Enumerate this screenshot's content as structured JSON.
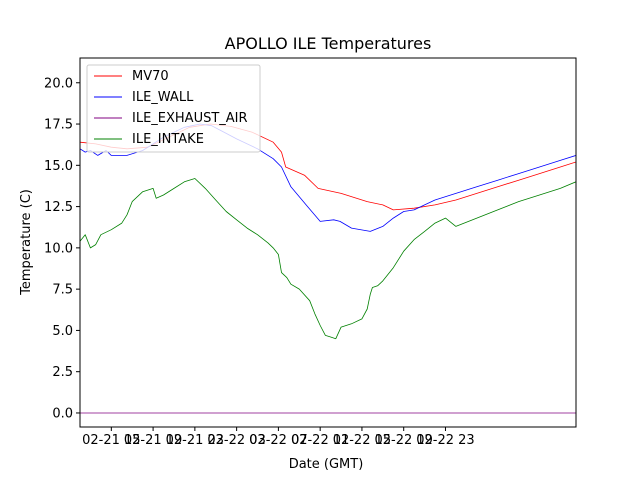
{
  "chart_data": {
    "type": "line",
    "title": "APOLLO ILE Temperatures",
    "xlabel": "Date (GMT)",
    "ylabel": "Temperature (C)",
    "xlim": [
      12,
      59.5
    ],
    "ylim": [
      -0.85,
      21.5
    ],
    "x_unit": "hours since 02-21 00:00 GMT",
    "x_ticks": [
      {
        "value": 15,
        "label": "02-21 15"
      },
      {
        "value": 19,
        "label": "02-21 19"
      },
      {
        "value": 23,
        "label": "02-21 23"
      },
      {
        "value": 27,
        "label": "02-22 03"
      },
      {
        "value": 31,
        "label": "02-22 07"
      },
      {
        "value": 35,
        "label": "02-22 11"
      },
      {
        "value": 39,
        "label": "02-22 15"
      },
      {
        "value": 43,
        "label": "02-22 19"
      },
      {
        "value": 47,
        "label": "02-22 23"
      }
    ],
    "y_ticks": [
      {
        "value": 0.0,
        "label": "0.0"
      },
      {
        "value": 2.5,
        "label": "2.5"
      },
      {
        "value": 5.0,
        "label": "5.0"
      },
      {
        "value": 7.5,
        "label": "7.5"
      },
      {
        "value": 10.0,
        "label": "10.0"
      },
      {
        "value": 12.5,
        "label": "12.5"
      },
      {
        "value": 15.0,
        "label": "15.0"
      },
      {
        "value": 17.5,
        "label": "17.5"
      },
      {
        "value": 20.0,
        "label": "20.0"
      }
    ],
    "legend_position": "top-left",
    "series": [
      {
        "name": "MV70",
        "color": "#ff0000",
        "x": [
          12,
          13.5,
          15,
          16.5,
          18.5,
          20.5,
          22.5,
          24.5,
          26.5,
          28.5,
          30.5,
          31.3,
          31.7,
          33.5,
          34.8,
          37,
          39.5,
          41,
          42,
          44,
          46,
          48,
          50,
          52,
          54,
          56,
          58,
          59.5
        ],
        "values": [
          16.4,
          16.3,
          16.1,
          16.0,
          16.1,
          16.7,
          17.3,
          17.5,
          17.35,
          17.0,
          16.4,
          15.8,
          14.9,
          14.4,
          13.6,
          13.3,
          12.8,
          12.6,
          12.3,
          12.4,
          12.6,
          12.9,
          13.3,
          13.7,
          14.1,
          14.5,
          14.9,
          15.2
        ]
      },
      {
        "name": "ILE_WALL",
        "color": "#0000ff",
        "x": [
          12,
          12.5,
          13,
          13.7,
          14.5,
          15,
          16.5,
          18,
          20,
          22,
          23.5,
          24.6,
          25.5,
          27,
          29,
          30.5,
          31.3,
          32.2,
          33.8,
          35,
          36.3,
          36.9,
          38,
          39.8,
          41,
          42,
          43,
          44,
          45,
          46,
          48,
          50,
          52,
          54,
          56,
          58,
          59.5
        ],
        "values": [
          16.0,
          15.8,
          15.9,
          15.6,
          15.9,
          15.6,
          15.6,
          15.9,
          16.7,
          17.3,
          17.5,
          17.4,
          17.1,
          16.6,
          16.0,
          15.4,
          14.9,
          13.7,
          12.5,
          11.6,
          11.7,
          11.6,
          11.2,
          11.0,
          11.3,
          11.8,
          12.2,
          12.3,
          12.6,
          12.9,
          13.3,
          13.7,
          14.1,
          14.5,
          14.9,
          15.3,
          15.6
        ]
      },
      {
        "name": "ILE_EXHAUST_AIR",
        "color": "#800080",
        "x": [
          12,
          59.5
        ],
        "values": [
          0.0,
          0.0
        ]
      },
      {
        "name": "ILE_INTAKE",
        "color": "#008000",
        "x": [
          12,
          12.5,
          13,
          13.5,
          14,
          15,
          16,
          16.5,
          17,
          18,
          19,
          19.3,
          20,
          21,
          22,
          23,
          24,
          25,
          26,
          27,
          28,
          29,
          30,
          30.5,
          31,
          31.3,
          31.8,
          32.2,
          33,
          34,
          34.5,
          35,
          35.5,
          36,
          36.5,
          37,
          38,
          39,
          39.5,
          39.8,
          40,
          40.5,
          41,
          42,
          43,
          44,
          45,
          46,
          47,
          48,
          50,
          52,
          54,
          56,
          58,
          59.5
        ],
        "values": [
          10.4,
          10.8,
          10.0,
          10.2,
          10.8,
          11.1,
          11.5,
          12.0,
          12.8,
          13.4,
          13.6,
          13.0,
          13.2,
          13.6,
          14.0,
          14.2,
          13.6,
          12.9,
          12.2,
          11.7,
          11.2,
          10.8,
          10.3,
          10.0,
          9.6,
          8.5,
          8.2,
          7.8,
          7.5,
          6.8,
          6.0,
          5.3,
          4.7,
          4.6,
          4.5,
          5.2,
          5.4,
          5.7,
          6.3,
          7.2,
          7.6,
          7.7,
          8.0,
          8.8,
          9.8,
          10.5,
          11.0,
          11.5,
          11.8,
          11.3,
          11.8,
          12.3,
          12.8,
          13.2,
          13.6,
          14.0
        ]
      }
    ]
  }
}
